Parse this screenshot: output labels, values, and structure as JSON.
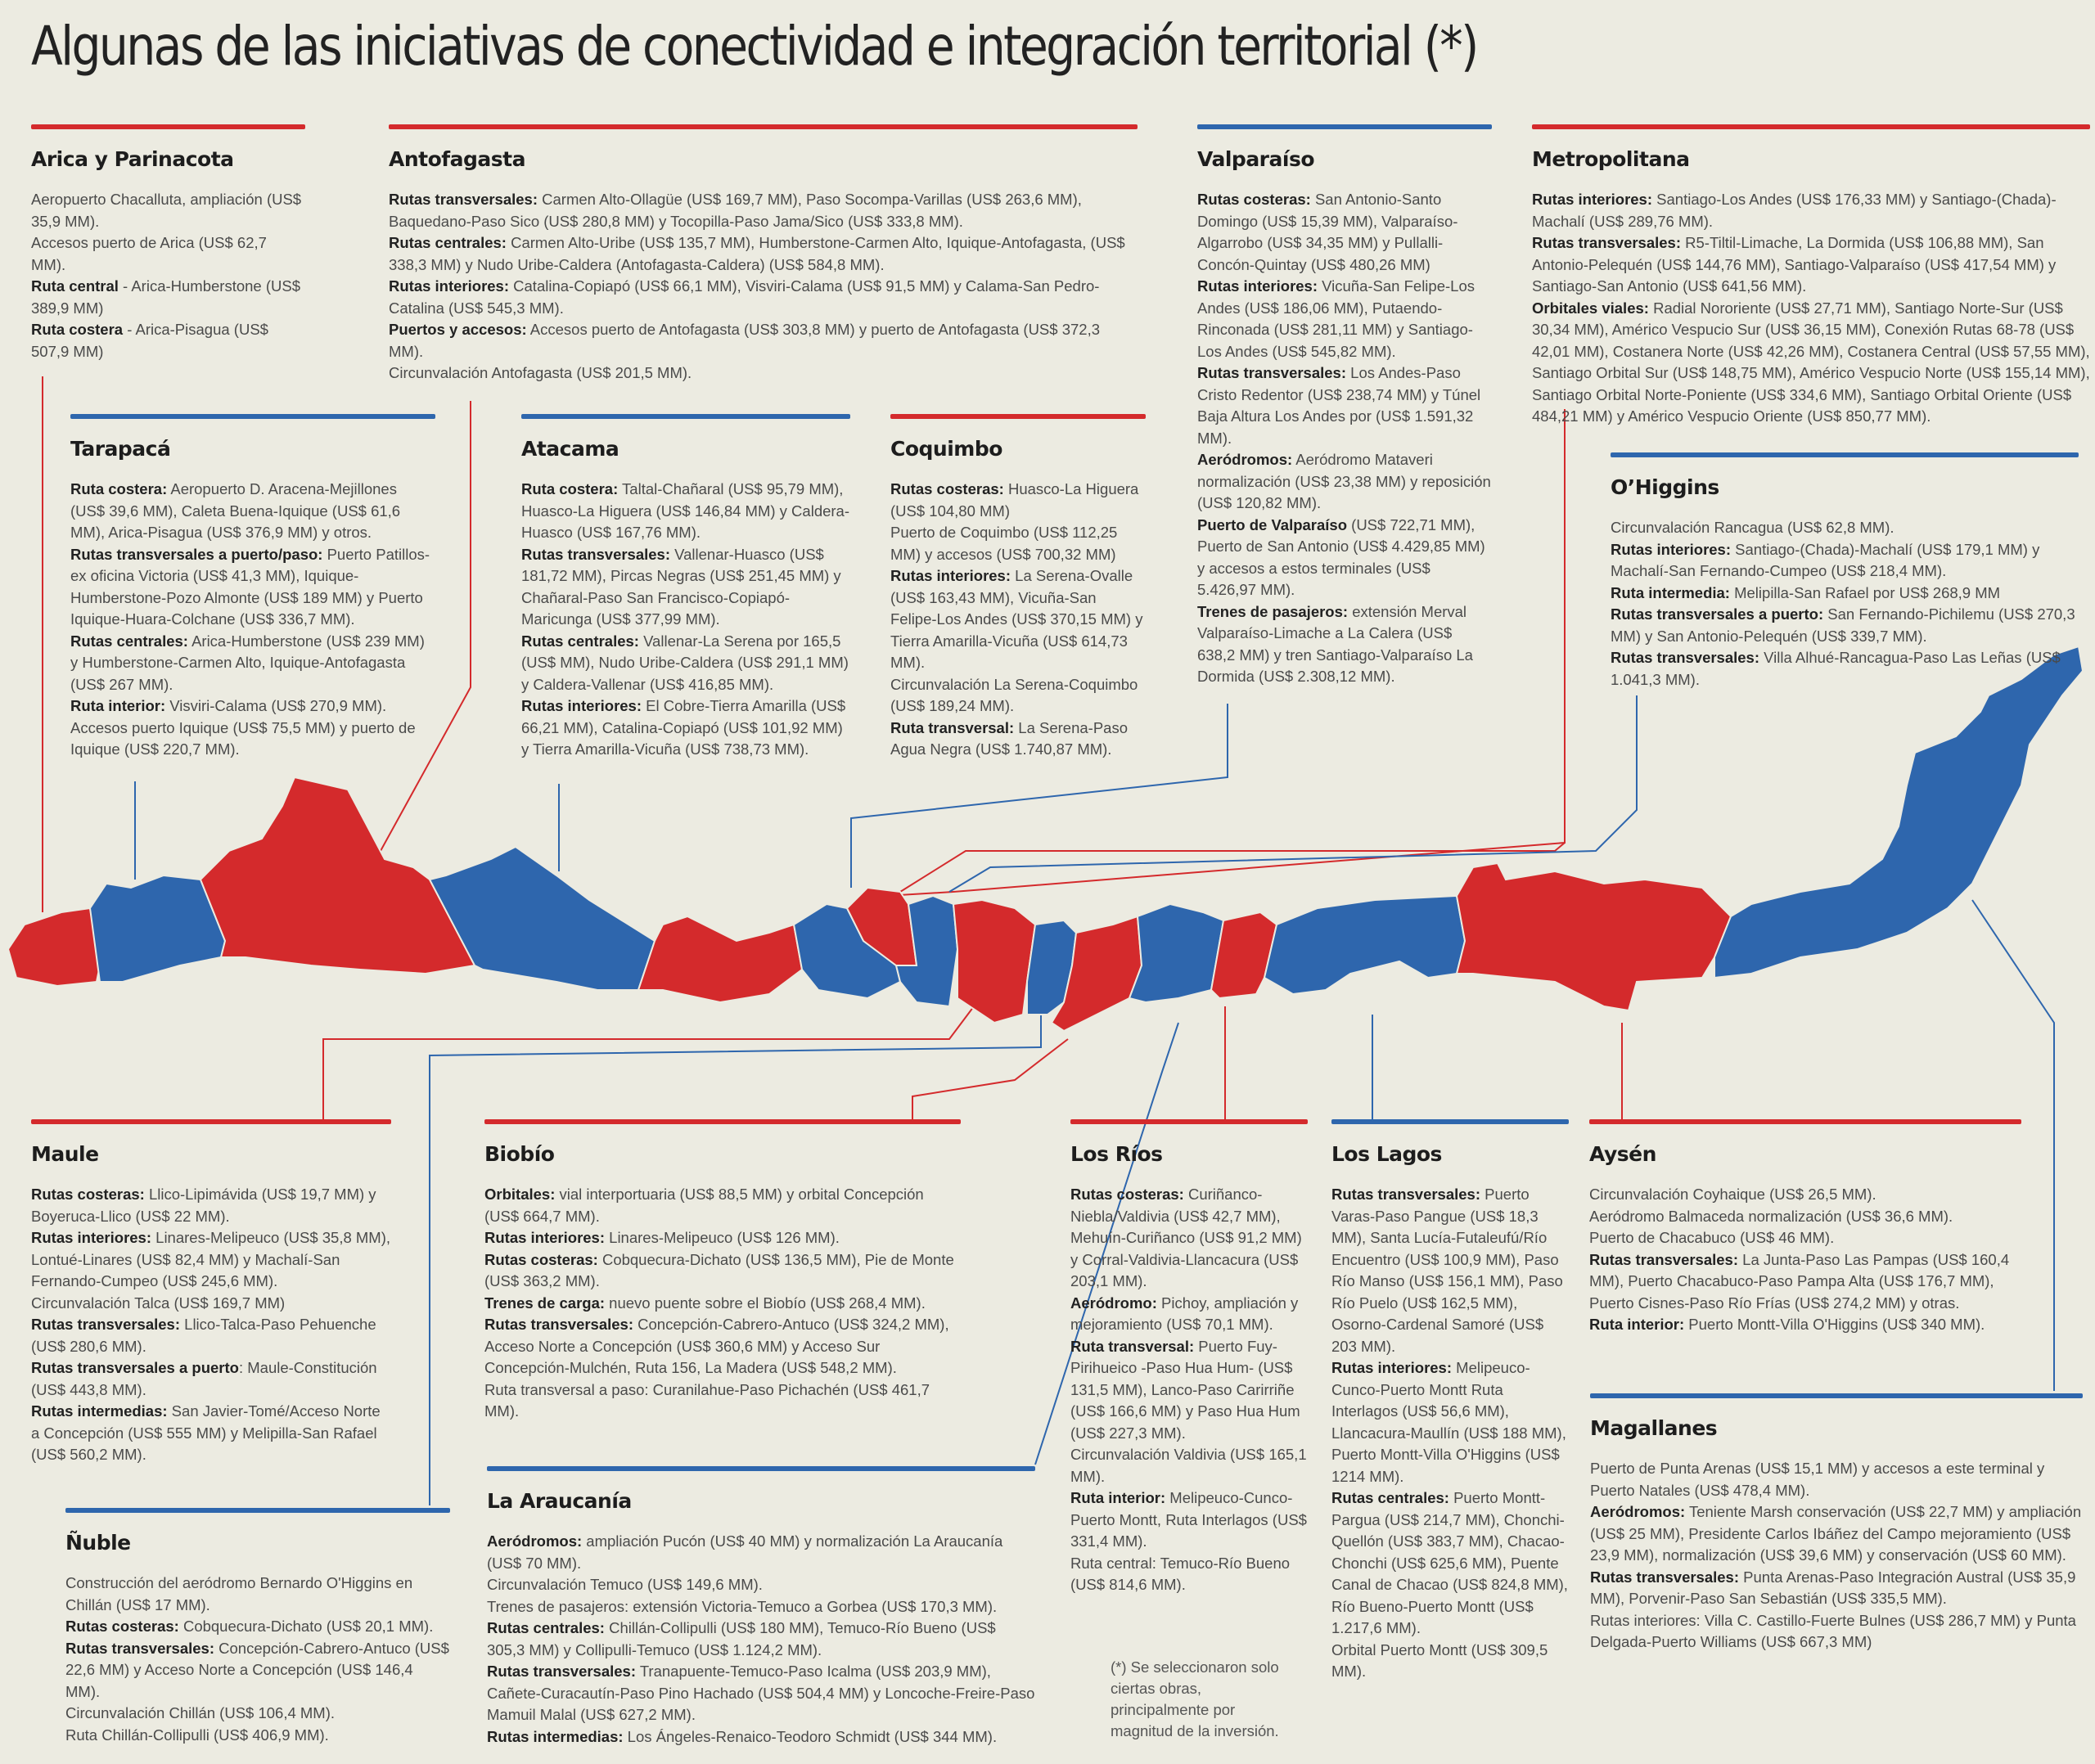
{
  "title": "Algunas de las iniciativas de conectividad e integración territorial (*)",
  "footnote": "(*) Se seleccionaron solo ciertas obras, principalmente por magnitud de la inversión.",
  "colors": {
    "red": "#d42a2c",
    "blue": "#2e66ad",
    "background": "#ecebe1"
  },
  "regions": {
    "arica": {
      "name": "Arica y Parinacota",
      "color": "red",
      "items": [
        {
          "label": "",
          "text": "Aeropuerto Chacalluta, ampliación (US$ 35,9 MM)."
        },
        {
          "label": "",
          "text": "Accesos puerto de Arica (US$ 62,7 MM)."
        },
        {
          "label": "Ruta central",
          "text": " - Arica-Humberstone (US$ 389,9 MM)"
        },
        {
          "label": "Ruta costera",
          "text": " - Arica-Pisagua (US$ 507,9 MM)"
        }
      ]
    },
    "antofagasta": {
      "name": "Antofagasta",
      "color": "red",
      "items": [
        {
          "label": "Rutas transversales:",
          "text": " Carmen Alto-Ollagüe (US$ 169,7 MM), Paso Socompa-Varillas (US$ 263,6 MM), Baquedano-Paso Sico (US$ 280,8 MM) y Tocopilla-Paso Jama/Sico (US$ 333,8 MM)."
        },
        {
          "label": "Rutas centrales:",
          "text": " Carmen Alto-Uribe (US$ 135,7 MM), Humberstone-Carmen Alto, Iquique-Antofagasta, (US$ 338,3 MM) y Nudo Uribe-Caldera (Antofagasta-Caldera) (US$ 584,8 MM)."
        },
        {
          "label": "Rutas interiores:",
          "text": " Catalina-Copiapó (US$ 66,1 MM), Visviri-Calama (US$ 91,5 MM) y Calama-San Pedro-Catalina (US$ 545,3 MM)."
        },
        {
          "label": "Puertos y accesos:",
          "text": " Accesos puerto de Antofagasta (US$ 303,8 MM) y puerto de Antofagasta (US$ 372,3 MM)."
        },
        {
          "label": "",
          "text": "Circunvalación Antofagasta (US$ 201,5 MM)."
        }
      ]
    },
    "valparaiso": {
      "name": "Valparaíso",
      "color": "blue",
      "items": [
        {
          "label": "Rutas costeras:",
          "text": " San Antonio-Santo Domingo (US$ 15,39 MM), Valparaíso-Algarrobo (US$ 34,35 MM) y Pullalli-Concón-Quintay (US$ 480,26 MM)"
        },
        {
          "label": "Rutas interiores:",
          "text": " Vicuña-San Felipe-Los Andes (US$ 186,06 MM), Putaendo-Rinconada (US$ 281,11 MM) y Santiago-Los Andes (US$ 545,82 MM)."
        },
        {
          "label": "Rutas transversales:",
          "text": " Los Andes-Paso Cristo Redentor (US$ 238,74 MM) y Túnel Baja Altura Los Andes por (US$ 1.591,32 MM)."
        },
        {
          "label": "Aeródromos:",
          "text": " Aeródromo Mataveri normalización (US$ 23,38 MM) y reposición (US$ 120,82 MM)."
        },
        {
          "label": "Puerto de Valparaíso",
          "text": " (US$ 722,71 MM), Puerto de San Antonio (US$ 4.429,85 MM) y accesos a estos terminales (US$ 5.426,97 MM)."
        },
        {
          "label": "Trenes de pasajeros:",
          "text": " extensión Merval Valparaíso-Limache a La Calera (US$ 638,2 MM) y tren Santiago-Valparaíso La Dormida (US$ 2.308,12 MM)."
        }
      ]
    },
    "metropolitana": {
      "name": "Metropolitana",
      "color": "red",
      "items": [
        {
          "label": "Rutas interiores:",
          "text": " Santiago-Los Andes (US$ 176,33 MM) y Santiago-(Chada)-Machalí (US$ 289,76 MM)."
        },
        {
          "label": "Rutas transversales:",
          "text": " R5-Tiltil-Limache, La Dormida (US$ 106,88 MM), San Antonio-Pelequén (US$ 144,76 MM), Santiago-Valparaíso (US$ 417,54 MM) y Santiago-San Antonio (US$ 641,56 MM)."
        },
        {
          "label": "Orbitales viales:",
          "text": " Radial Nororiente (US$ 27,71 MM), Santiago Norte-Sur (US$ 30,34 MM), Américo Vespucio Sur (US$ 36,15 MM), Conexión Rutas 68-78 (US$ 42,01 MM), Costanera Norte (US$ 42,26 MM), Costanera Central (US$ 57,55 MM), Santiago Orbital Sur (US$ 148,75 MM), Américo Vespucio Norte (US$ 155,14 MM), Santiago Orbital Norte-Poniente (US$ 334,6 MM), Santiago Orbital Oriente (US$ 484,21 MM) y Américo Vespucio Oriente (US$ 850,77 MM)."
        }
      ]
    },
    "tarapaca": {
      "name": "Tarapacá",
      "color": "blue",
      "items": [
        {
          "label": "Ruta costera:",
          "text": " Aeropuerto D. Aracena-Mejillones (US$ 39,6 MM), Caleta Buena-Iquique (US$ 61,6 MM), Arica-Pisagua (US$ 376,9 MM) y otros."
        },
        {
          "label": "Rutas transversales a puerto/paso:",
          "text": " Puerto Patillos-ex oficina Victoria (US$ 41,3 MM), Iquique-Humberstone-Pozo Almonte (US$ 189 MM) y Puerto Iquique-Huara-Colchane (US$ 336,7 MM)."
        },
        {
          "label": "Rutas centrales:",
          "text": " Arica-Humberstone (US$ 239 MM) y Humberstone-Carmen Alto, Iquique-Antofagasta (US$ 267 MM)."
        },
        {
          "label": "Ruta interior:",
          "text": " Visviri-Calama (US$ 270,9 MM)."
        },
        {
          "label": "",
          "text": "Accesos puerto Iquique (US$ 75,5 MM) y puerto de Iquique (US$ 220,7 MM)."
        }
      ]
    },
    "atacama": {
      "name": "Atacama",
      "color": "blue",
      "items": [
        {
          "label": "Ruta costera:",
          "text": " Taltal-Chañaral (US$ 95,79 MM), Huasco-La Higuera (US$ 146,84 MM) y Caldera-Huasco (US$ 167,76 MM)."
        },
        {
          "label": "Rutas transversales:",
          "text": " Vallenar-Huasco (US$ 181,72 MM), Pircas Negras (US$ 251,45 MM) y Chañaral-Paso San Francisco-Copiapó-Maricunga (US$ 377,99 MM)."
        },
        {
          "label": "Rutas centrales:",
          "text": " Vallenar-La Serena por 165,5 (US$ MM), Nudo Uribe-Caldera (US$ 291,1 MM) y Caldera-Vallenar (US$ 416,85 MM)."
        },
        {
          "label": "Rutas interiores:",
          "text": " El Cobre-Tierra Amarilla (US$ 66,21 MM), Catalina-Copiapó (US$ 101,92 MM) y Tierra Amarilla-Vicuña (US$ 738,73 MM)."
        }
      ]
    },
    "coquimbo": {
      "name": "Coquimbo",
      "color": "red",
      "items": [
        {
          "label": "Rutas costeras:",
          "text": " Huasco-La Higuera (US$ 104,80 MM)"
        },
        {
          "label": "",
          "text": "Puerto de Coquimbo (US$ 112,25 MM) y accesos (US$ 700,32 MM)"
        },
        {
          "label": "Rutas interiores:",
          "text": " La Serena-Ovalle (US$ 163,43 MM), Vicuña-San Felipe-Los Andes (US$ 370,15 MM) y Tierra Amarilla-Vicuña (US$ 614,73 MM)."
        },
        {
          "label": "",
          "text": "Circunvalación La Serena-Coquimbo (US$ 189,24 MM)."
        },
        {
          "label": "Ruta transversal:",
          "text": " La Serena-Paso Agua Negra (US$ 1.740,87 MM)."
        }
      ]
    },
    "ohiggins": {
      "name": "O’Higgins",
      "color": "blue",
      "items": [
        {
          "label": "",
          "text": "Circunvalación Rancagua (US$ 62,8 MM)."
        },
        {
          "label": "Rutas interiores:",
          "text": " Santiago-(Chada)-Machalí (US$ 179,1 MM) y Machalí-San Fernando-Cumpeo (US$ 218,4 MM)."
        },
        {
          "label": "Ruta intermedia:",
          "text": " Melipilla-San Rafael por US$ 268,9 MM"
        },
        {
          "label": "Rutas transversales a puerto:",
          "text": " San Fernando-Pichilemu (US$ 270,3 MM) y San Antonio-Pelequén (US$ 339,7 MM)."
        },
        {
          "label": "Rutas transversales:",
          "text": " Villa Alhué-Rancagua-Paso Las Leñas (US$ 1.041,3 MM)."
        }
      ]
    },
    "maule": {
      "name": "Maule",
      "color": "red",
      "items": [
        {
          "label": "Rutas costeras:",
          "text": " Llico-Lipimávida (US$ 19,7 MM) y Boyeruca-Llico (US$ 22 MM)."
        },
        {
          "label": "Rutas interiores:",
          "text": " Linares-Melipeuco (US$ 35,8 MM), Lontué-Linares (US$ 82,4 MM) y Machalí-San Fernando-Cumpeo (US$ 245,6 MM)."
        },
        {
          "label": "",
          "text": "Circunvalación Talca (US$ 169,7 MM)"
        },
        {
          "label": "Rutas transversales:",
          "text": " Llico-Talca-Paso Pehuenche (US$ 280,6 MM)."
        },
        {
          "label": "Rutas transversales a puerto",
          "text": ": Maule-Constitución (US$ 443,8 MM)."
        },
        {
          "label": "Rutas intermedias:",
          "text": " San Javier-Tomé/Acceso Norte a Concepción (US$ 555 MM) y Melipilla-San Rafael (US$ 560,2 MM)."
        }
      ]
    },
    "nuble": {
      "name": "Ñuble",
      "color": "blue",
      "items": [
        {
          "label": "",
          "text": "Construcción del aeródromo Bernardo O'Higgins en Chillán (US$ 17 MM)."
        },
        {
          "label": "Rutas costeras:",
          "text": " Cobquecura-Dichato (US$ 20,1 MM)."
        },
        {
          "label": "Rutas transversales:",
          "text": " Concepción-Cabrero-Antuco (US$ 22,6 MM) y Acceso Norte a Concepción (US$ 146,4 MM)."
        },
        {
          "label": "",
          "text": "Circunvalación Chillán (US$ 106,4 MM)."
        },
        {
          "label": "",
          "text": "Ruta Chillán-Collipulli (US$ 406,9 MM)."
        }
      ]
    },
    "biobio": {
      "name": "Biobío",
      "color": "red",
      "items": [
        {
          "label": "Orbitales:",
          "text": " vial interportuaria (US$ 88,5 MM) y orbital Concepción (US$ 664,7 MM)."
        },
        {
          "label": "Rutas interiores:",
          "text": " Linares-Melipeuco (US$ 126 MM)."
        },
        {
          "label": "Rutas costeras:",
          "text": " Cobquecura-Dichato (US$ 136,5 MM), Pie de Monte (US$ 363,2 MM)."
        },
        {
          "label": "Trenes de carga:",
          "text": " nuevo puente sobre el Biobío (US$ 268,4 MM)."
        },
        {
          "label": "Rutas transversales:",
          "text": " Concepción-Cabrero-Antuco (US$ 324,2 MM), Acceso Norte a Concepción (US$ 360,6 MM) y Acceso Sur Concepción-Mulchén, Ruta 156, La Madera (US$ 548,2 MM)."
        },
        {
          "label": "",
          "text": "Ruta transversal a paso: Curanilahue-Paso Pichachén (US$ 461,7 MM)."
        }
      ]
    },
    "araucania": {
      "name": "La Araucanía",
      "color": "blue",
      "items": [
        {
          "label": "Aeródromos:",
          "text": " ampliación Pucón (US$ 40 MM) y normalización La Araucanía (US$ 70 MM)."
        },
        {
          "label": "",
          "text": "Circunvalación Temuco (US$ 149,6 MM)."
        },
        {
          "label": "",
          "text": "Trenes de pasajeros: extensión Victoria-Temuco a Gorbea (US$ 170,3 MM)."
        },
        {
          "label": "Rutas centrales:",
          "text": " Chillán-Collipulli (US$ 180 MM), Temuco-Río Bueno (US$ 305,3 MM) y Collipulli-Temuco (US$ 1.124,2 MM)."
        },
        {
          "label": "Rutas transversales:",
          "text": " Tranapuente-Temuco-Paso Icalma (US$ 203,9 MM), Cañete-Curacautín-Paso Pino Hachado (US$ 504,4 MM) y Loncoche-Freire-Paso Mamuil Malal (US$ 627,2 MM)."
        },
        {
          "label": "Rutas intermedias:",
          "text": " Los Ángeles-Renaico-Teodoro Schmidt (US$ 344 MM)."
        }
      ]
    },
    "losrios": {
      "name": "Los Ríos",
      "color": "red",
      "items": [
        {
          "label": "Rutas costeras:",
          "text": " Curiñanco-Niebla/Valdivia (US$ 42,7 MM), Mehuín-Curiñanco (US$ 91,2 MM) y Corral-Valdivia-Llancacura (US$ 203,1 MM)."
        },
        {
          "label": "Aeródromo:",
          "text": " Pichoy, ampliación y mejoramiento (US$ 70,1 MM)."
        },
        {
          "label": "Ruta transversal:",
          "text": " Puerto Fuy-Pirihueico -Paso Hua Hum- (US$ 131,5 MM), Lanco-Paso Carirriñe (US$ 166,6 MM) y Paso Hua Hum (US$ 227,3 MM)."
        },
        {
          "label": "",
          "text": "Circunvalación Valdivia (US$ 165,1 MM)."
        },
        {
          "label": "Ruta interior:",
          "text": " Melipeuco-Cunco-Puerto Montt, Ruta Interlagos (US$ 331,4 MM)."
        },
        {
          "label": "",
          "text": "Ruta central: Temuco-Río Bueno (US$ 814,6 MM)."
        }
      ]
    },
    "loslagos": {
      "name": "Los Lagos",
      "color": "blue",
      "items": [
        {
          "label": "Rutas transversales:",
          "text": " Puerto Varas-Paso Pangue (US$ 18,3 MM), Santa Lucía-Futaleufú/Río Encuentro (US$ 100,9 MM), Paso Río Manso (US$ 156,1 MM), Paso Río Puelo (US$ 162,5 MM), Osorno-Cardenal Samoré (US$ 203 MM)."
        },
        {
          "label": "Rutas interiores:",
          "text": " Melipeuco-Cunco-Puerto Montt Ruta Interlagos (US$ 56,6 MM), Llancacura-Maullín (US$ 188 MM), Puerto Montt-Villa O'Higgins (US$ 1214 MM)."
        },
        {
          "label": "Rutas centrales:",
          "text": " Puerto Montt-Pargua (US$ 214,7 MM), Chonchi-Quellón (US$ 383,7 MM), Chacao-Chonchi (US$ 625,6 MM), Puente Canal de Chacao (US$ 824,8 MM), Río Bueno-Puerto Montt (US$ 1.217,6 MM)."
        },
        {
          "label": "",
          "text": "Orbital Puerto Montt (US$ 309,5 MM)."
        }
      ]
    },
    "aysen": {
      "name": "Aysén",
      "color": "red",
      "items": [
        {
          "label": "",
          "text": "Circunvalación Coyhaique (US$ 26,5 MM)."
        },
        {
          "label": "",
          "text": "Aeródromo Balmaceda normalización (US$ 36,6 MM)."
        },
        {
          "label": "",
          "text": "Puerto de Chacabuco (US$ 46 MM)."
        },
        {
          "label": "Rutas transversales:",
          "text": " La Junta-Paso Las Pampas (US$ 160,4 MM), Puerto Chacabuco-Paso Pampa Alta (US$ 176,7 MM), Puerto Cisnes-Paso Río Frías (US$ 274,2 MM) y otras."
        },
        {
          "label": "Ruta interior:",
          "text": " Puerto Montt-Villa O'Higgins (US$ 340 MM)."
        }
      ]
    },
    "magallanes": {
      "name": "Magallanes",
      "color": "blue",
      "items": [
        {
          "label": "",
          "text": "Puerto de Punta Arenas (US$ 15,1 MM) y accesos a este terminal y Puerto Natales (US$ 478,4 MM)."
        },
        {
          "label": "Aeródromos:",
          "text": " Teniente Marsh conservación (US$ 22,7 MM) y ampliación (US$ 25 MM), Presidente Carlos Ibáñez del Campo mejoramiento (US$ 23,9 MM), normalización (US$ 39,6 MM) y conservación (US$ 60 MM)."
        },
        {
          "label": "Rutas transversales:",
          "text": " Punta Arenas-Paso Integración Austral (US$ 35,9 MM), Porvenir-Paso San Sebastián (US$ 335,5 MM)."
        },
        {
          "label": "",
          "text": "Rutas interiores: Villa C. Castillo-Fuerte Bulnes (US$ 286,7 MM) y Punta Delgada-Puerto Williams (US$ 667,3 MM)"
        }
      ]
    }
  }
}
